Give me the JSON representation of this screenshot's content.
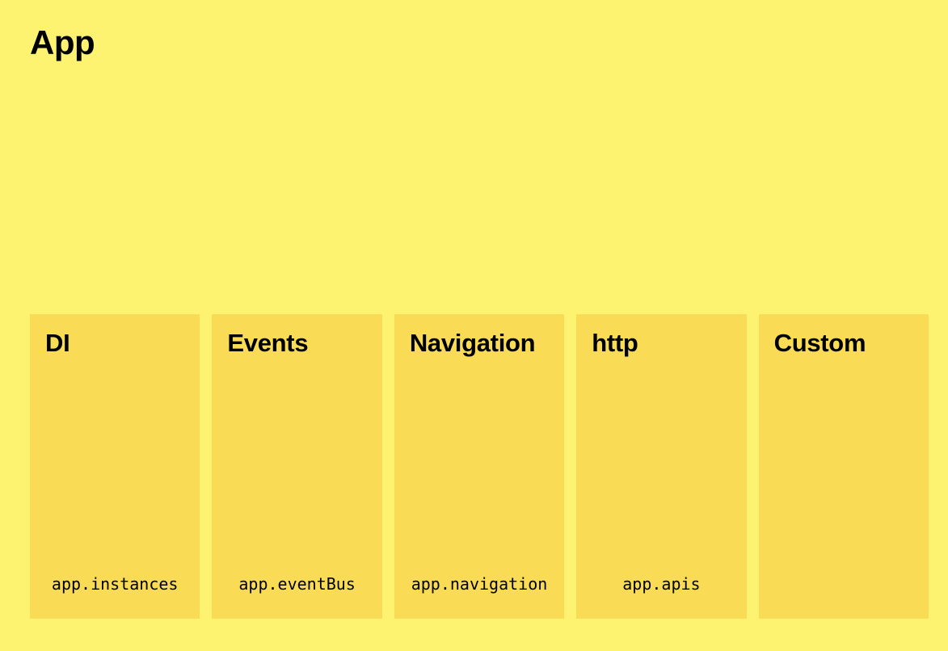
{
  "app": {
    "title": "App"
  },
  "modules": [
    {
      "title": "DI",
      "code": "app.instances"
    },
    {
      "title": "Events",
      "code": "app.eventBus"
    },
    {
      "title": "Navigation",
      "code": "app.navigation"
    },
    {
      "title": "http",
      "code": "app.apis"
    },
    {
      "title": "Custom",
      "code": ""
    }
  ],
  "colors": {
    "background": "#FEF271",
    "module_fill": "#F9DB56",
    "text": "#000000"
  }
}
